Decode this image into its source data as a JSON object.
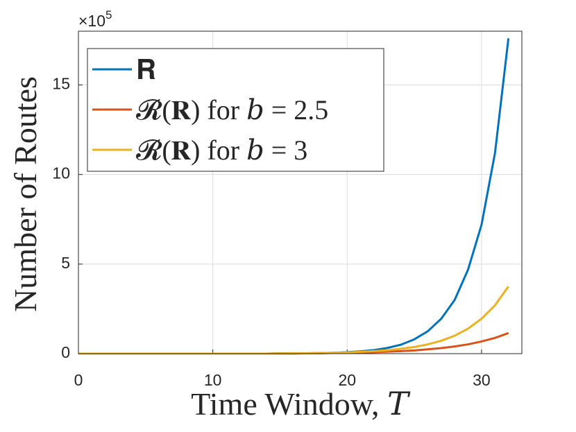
{
  "chart_data": {
    "type": "line",
    "x_label": "Time Window, 𝑇",
    "y_label": "Number of Routes",
    "y_multiplier": "×10",
    "y_multiplier_exponent": "5",
    "x": [
      0,
      1,
      2,
      3,
      4,
      5,
      6,
      7,
      8,
      9,
      10,
      11,
      12,
      13,
      14,
      15,
      16,
      17,
      18,
      19,
      20,
      21,
      22,
      23,
      24,
      25,
      26,
      27,
      28,
      29,
      30,
      31,
      32
    ],
    "series": [
      {
        "name": "𝐑",
        "color": "#0072bd",
        "values": [
          0,
          0,
          0,
          0,
          0,
          0,
          0,
          0,
          0,
          0,
          0,
          0,
          0,
          0,
          0,
          0.01,
          0.01,
          0.02,
          0.03,
          0.05,
          0.08,
          0.13,
          0.2,
          0.32,
          0.5,
          0.8,
          1.25,
          1.95,
          3.0,
          4.7,
          7.2,
          11.2,
          17.6
        ]
      },
      {
        "name": "𝓡(𝐑) for 𝑏 = 2.5",
        "color": "#d95319",
        "values": [
          0,
          0,
          0,
          0,
          0,
          0,
          0,
          0,
          0,
          0,
          0,
          0,
          0,
          0,
          0,
          0.01,
          0.01,
          0.02,
          0.03,
          0.04,
          0.05,
          0.06,
          0.08,
          0.11,
          0.14,
          0.18,
          0.24,
          0.31,
          0.4,
          0.52,
          0.68,
          0.88,
          1.15
        ]
      },
      {
        "name": "𝓡(𝐑) for 𝑏 = 3",
        "color": "#edb120",
        "values": [
          0,
          0,
          0,
          0,
          0,
          0,
          0,
          0,
          0,
          0,
          0,
          0,
          0,
          0,
          0,
          0.01,
          0.02,
          0.02,
          0.03,
          0.05,
          0.07,
          0.1,
          0.14,
          0.19,
          0.27,
          0.37,
          0.52,
          0.72,
          1.0,
          1.4,
          1.95,
          2.7,
          3.75
        ]
      }
    ],
    "xlim": [
      0,
      33
    ],
    "xticks": [
      0,
      10,
      20,
      30
    ],
    "ylim": [
      0,
      18
    ],
    "yticks": [
      0,
      5,
      10,
      15
    ],
    "grid": true,
    "legend": "upper left"
  }
}
